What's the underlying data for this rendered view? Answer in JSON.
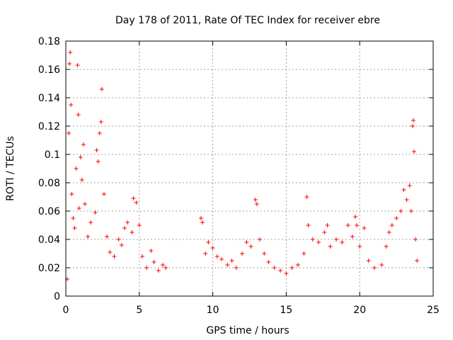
{
  "chart_data": {
    "type": "scatter",
    "title": "Day 178 of 2011, Rate Of TEC Index for receiver ebre",
    "xlabel": "GPS time / hours",
    "ylabel": "ROTI / TECUs",
    "xlim": [
      0,
      25
    ],
    "ylim": [
      0,
      0.18
    ],
    "xticks": [
      0,
      5,
      10,
      15,
      20,
      25
    ],
    "xtick_labels": [
      "0",
      "5",
      "10",
      "15",
      "20",
      "25"
    ],
    "yticks": [
      0,
      0.02,
      0.04,
      0.06,
      0.08,
      0.1,
      0.12,
      0.14,
      0.16,
      0.18
    ],
    "ytick_labels": [
      "0",
      "0.02",
      "0.04",
      "0.06",
      "0.08",
      "0.1",
      "0.12",
      "0.14",
      "0.16",
      "0.18"
    ],
    "grid": true,
    "marker": "+",
    "color": "#ff0000",
    "series": [
      {
        "name": "ROTI",
        "points": [
          [
            0.1,
            0.012
          ],
          [
            0.2,
            0.115
          ],
          [
            0.25,
            0.164
          ],
          [
            0.3,
            0.172
          ],
          [
            0.35,
            0.135
          ],
          [
            0.4,
            0.072
          ],
          [
            0.5,
            0.055
          ],
          [
            0.6,
            0.048
          ],
          [
            0.7,
            0.09
          ],
          [
            0.8,
            0.163
          ],
          [
            0.85,
            0.128
          ],
          [
            0.9,
            0.062
          ],
          [
            1.0,
            0.098
          ],
          [
            1.1,
            0.082
          ],
          [
            1.2,
            0.107
          ],
          [
            1.3,
            0.065
          ],
          [
            1.5,
            0.042
          ],
          [
            1.7,
            0.052
          ],
          [
            2.0,
            0.059
          ],
          [
            2.1,
            0.103
          ],
          [
            2.2,
            0.095
          ],
          [
            2.3,
            0.115
          ],
          [
            2.4,
            0.123
          ],
          [
            2.45,
            0.146
          ],
          [
            2.6,
            0.072
          ],
          [
            2.8,
            0.042
          ],
          [
            3.0,
            0.031
          ],
          [
            3.3,
            0.028
          ],
          [
            3.6,
            0.04
          ],
          [
            3.8,
            0.036
          ],
          [
            4.0,
            0.048
          ],
          [
            4.2,
            0.052
          ],
          [
            4.5,
            0.045
          ],
          [
            4.6,
            0.069
          ],
          [
            4.8,
            0.066
          ],
          [
            5.0,
            0.05
          ],
          [
            5.2,
            0.028
          ],
          [
            5.5,
            0.02
          ],
          [
            5.8,
            0.032
          ],
          [
            6.0,
            0.024
          ],
          [
            6.3,
            0.018
          ],
          [
            6.6,
            0.022
          ],
          [
            6.8,
            0.02
          ],
          [
            9.2,
            0.055
          ],
          [
            9.3,
            0.052
          ],
          [
            9.5,
            0.03
          ],
          [
            9.7,
            0.038
          ],
          [
            10.0,
            0.034
          ],
          [
            10.3,
            0.028
          ],
          [
            10.6,
            0.026
          ],
          [
            11.0,
            0.022
          ],
          [
            11.3,
            0.025
          ],
          [
            11.6,
            0.02
          ],
          [
            12.0,
            0.03
          ],
          [
            12.3,
            0.038
          ],
          [
            12.6,
            0.035
          ],
          [
            12.9,
            0.068
          ],
          [
            13.0,
            0.065
          ],
          [
            13.2,
            0.04
          ],
          [
            13.5,
            0.03
          ],
          [
            13.8,
            0.024
          ],
          [
            14.2,
            0.02
          ],
          [
            14.6,
            0.018
          ],
          [
            15.0,
            0.016
          ],
          [
            15.4,
            0.02
          ],
          [
            15.8,
            0.022
          ],
          [
            16.2,
            0.03
          ],
          [
            16.4,
            0.07
          ],
          [
            16.5,
            0.05
          ],
          [
            16.8,
            0.04
          ],
          [
            17.2,
            0.038
          ],
          [
            17.6,
            0.045
          ],
          [
            17.8,
            0.05
          ],
          [
            18.0,
            0.035
          ],
          [
            18.4,
            0.04
          ],
          [
            18.8,
            0.038
          ],
          [
            19.2,
            0.05
          ],
          [
            19.5,
            0.042
          ],
          [
            19.7,
            0.056
          ],
          [
            19.8,
            0.05
          ],
          [
            20.0,
            0.035
          ],
          [
            20.3,
            0.048
          ],
          [
            20.6,
            0.025
          ],
          [
            21.0,
            0.02
          ],
          [
            21.5,
            0.022
          ],
          [
            21.8,
            0.035
          ],
          [
            22.0,
            0.045
          ],
          [
            22.2,
            0.05
          ],
          [
            22.5,
            0.055
          ],
          [
            22.8,
            0.06
          ],
          [
            23.0,
            0.075
          ],
          [
            23.2,
            0.068
          ],
          [
            23.4,
            0.078
          ],
          [
            23.5,
            0.06
          ],
          [
            23.6,
            0.12
          ],
          [
            23.65,
            0.124
          ],
          [
            23.7,
            0.102
          ],
          [
            23.8,
            0.04
          ],
          [
            23.9,
            0.025
          ]
        ]
      }
    ],
    "dense_band_note_omitted": true
  }
}
